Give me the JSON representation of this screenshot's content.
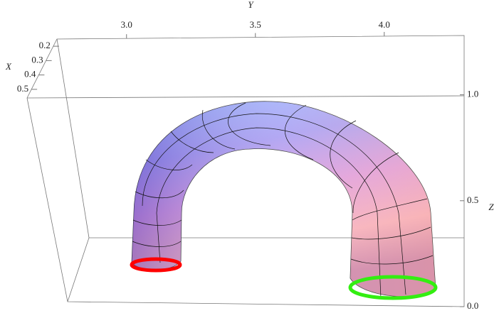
{
  "chart_data": {
    "type": "surface3d",
    "x_label": "X",
    "y_label": "Y",
    "z_label": "Z",
    "xlim": [
      0.15,
      0.56
    ],
    "xticks": [
      0.2,
      0.3,
      0.4,
      0.5
    ],
    "ylim": [
      2.73,
      4.31
    ],
    "yticks": [
      {
        "value": 3,
        "label": "3.0"
      },
      3.5,
      {
        "value": 4,
        "label": "4.0"
      }
    ],
    "zlim": [
      0,
      1.28
    ],
    "zticks": [
      {
        "value": 0,
        "label": "0.0"
      },
      0.5,
      {
        "value": 1,
        "label": "1.0"
      }
    ],
    "start_color": "#ff0000",
    "end_color": "#33ee11"
  }
}
